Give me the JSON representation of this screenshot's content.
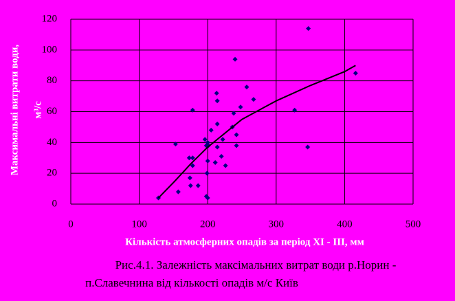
{
  "chart_data": {
    "type": "scatter",
    "xlabel": "Кількість атмосферних опадів за період ХІ - ІІІ, мм",
    "ylabel": "Максимальні витрати води,",
    "ylabel_unit": "м³/с",
    "caption": [
      "Рис.4.1. Залежність максімальних витрат води р.Норин -",
      "п.Славечнина від кількості опадів м/с Київ"
    ],
    "xlim": [
      0,
      500
    ],
    "xticks": [
      0,
      100,
      200,
      300,
      400,
      500
    ],
    "ylim": [
      0,
      120
    ],
    "yticks": [
      0,
      20,
      40,
      60,
      80,
      100,
      120
    ],
    "grid": true,
    "series": [
      {
        "color": "#000080",
        "x": [
          128,
          157,
          153,
          173,
          178,
          178,
          174,
          175,
          186,
          178,
          196,
          200,
          198,
          201,
          200,
          199,
          198,
          200,
          205,
          214,
          213,
          214,
          214,
          211,
          220,
          222,
          226,
          236,
          238,
          240,
          242,
          242,
          248,
          257,
          267,
          327,
          346,
          347,
          416
        ],
        "values": [
          4,
          8,
          39,
          30,
          30,
          25,
          17,
          12,
          12,
          61,
          42,
          40,
          38,
          38,
          28,
          20,
          5,
          4,
          48,
          52,
          72,
          67,
          37,
          27,
          31,
          42,
          25,
          50,
          59,
          94,
          45,
          38,
          63,
          76,
          68,
          61,
          37,
          114,
          85
        ]
      },
      {
        "type": "line",
        "color": "#000000",
        "x": [
          128,
          150,
          175,
          200,
          250,
          300,
          350,
          400,
          416
        ],
        "values": [
          4,
          14,
          26,
          37,
          55,
          67,
          77,
          86,
          90
        ]
      }
    ]
  }
}
